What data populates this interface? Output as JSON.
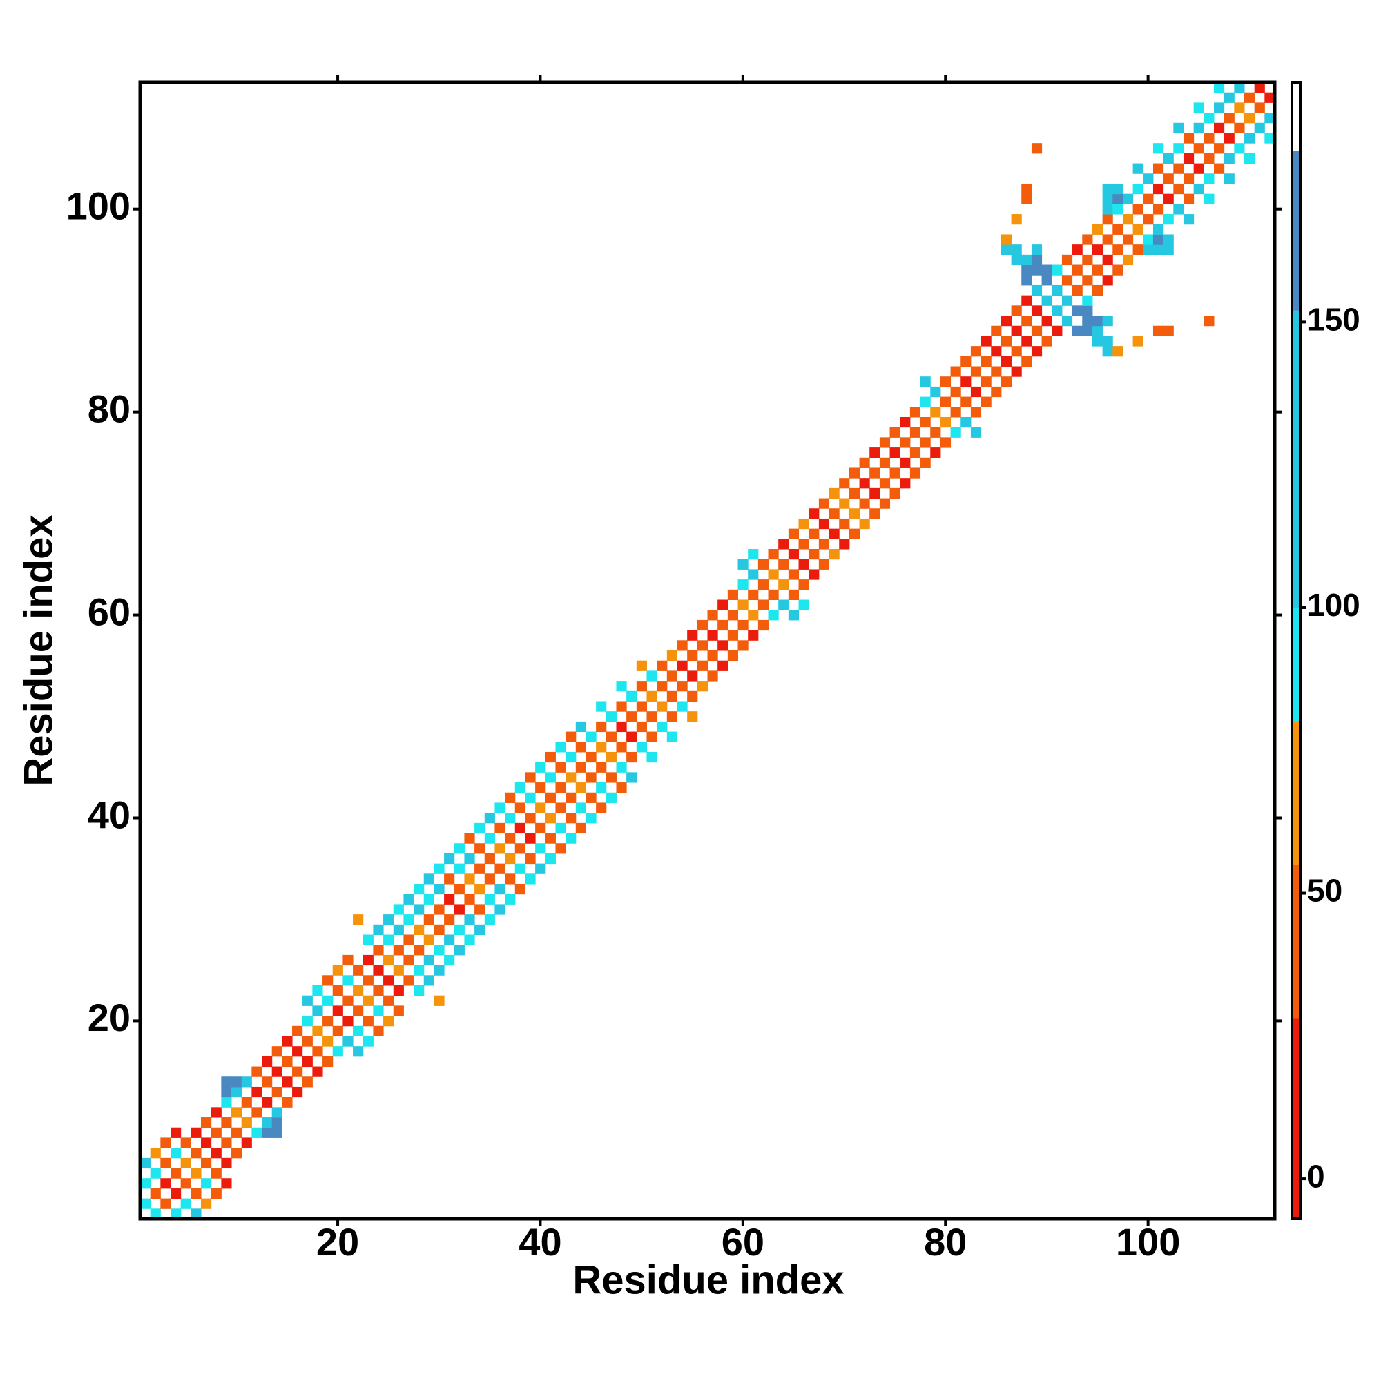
{
  "chart_data": {
    "type": "heatmap",
    "xlabel": "Residue index",
    "ylabel": "Residue index",
    "xlim": [
      0.5,
      112.5
    ],
    "ylim": [
      0.5,
      112.5
    ],
    "xticks": [
      20,
      40,
      60,
      80,
      100
    ],
    "yticks": [
      20,
      40,
      60,
      80,
      100
    ],
    "symmetric": true,
    "clim": [
      -7,
      192
    ],
    "cticks": [
      0,
      50,
      100,
      150
    ],
    "colorbands": [
      {
        "from": -7,
        "to": 28,
        "color": "#ec1c0c"
      },
      {
        "from": 28,
        "to": 55,
        "color": "#f25c0a"
      },
      {
        "from": 55,
        "to": 80,
        "color": "#f5930c"
      },
      {
        "from": 80,
        "to": 100,
        "color": "#1ee6ee"
      },
      {
        "from": 100,
        "to": 152,
        "color": "#25c8e0"
      },
      {
        "from": 152,
        "to": 180,
        "color": "#4a88c2"
      }
    ],
    "cells": [
      [
        1,
        2,
        90
      ],
      [
        1,
        4,
        90
      ],
      [
        1,
        6,
        120
      ],
      [
        2,
        3,
        40
      ],
      [
        2,
        5,
        90
      ],
      [
        2,
        7,
        65
      ],
      [
        3,
        4,
        10
      ],
      [
        3,
        6,
        40
      ],
      [
        3,
        8,
        40
      ],
      [
        4,
        5,
        40
      ],
      [
        4,
        7,
        90
      ],
      [
        4,
        9,
        10
      ],
      [
        5,
        6,
        65
      ],
      [
        5,
        8,
        40
      ],
      [
        6,
        7,
        40
      ],
      [
        6,
        9,
        10
      ],
      [
        7,
        8,
        10
      ],
      [
        7,
        10,
        40
      ],
      [
        8,
        9,
        40
      ],
      [
        8,
        11,
        10
      ],
      [
        9,
        10,
        40
      ],
      [
        9,
        12,
        90
      ],
      [
        9,
        13,
        165
      ],
      [
        9,
        14,
        165
      ],
      [
        10,
        11,
        65
      ],
      [
        10,
        13,
        120
      ],
      [
        10,
        14,
        165
      ],
      [
        11,
        12,
        40
      ],
      [
        11,
        14,
        120
      ],
      [
        12,
        13,
        10
      ],
      [
        12,
        15,
        40
      ],
      [
        13,
        14,
        40
      ],
      [
        13,
        16,
        10
      ],
      [
        14,
        15,
        10
      ],
      [
        14,
        17,
        40
      ],
      [
        15,
        16,
        40
      ],
      [
        15,
        18,
        10
      ],
      [
        16,
        17,
        10
      ],
      [
        16,
        19,
        40
      ],
      [
        17,
        18,
        40
      ],
      [
        17,
        20,
        90
      ],
      [
        17,
        22,
        120
      ],
      [
        18,
        19,
        65
      ],
      [
        18,
        21,
        120
      ],
      [
        18,
        23,
        90
      ],
      [
        19,
        20,
        40
      ],
      [
        19,
        22,
        90
      ],
      [
        19,
        24,
        40
      ],
      [
        20,
        21,
        10
      ],
      [
        20,
        23,
        40
      ],
      [
        20,
        25,
        65
      ],
      [
        21,
        22,
        40
      ],
      [
        21,
        24,
        90
      ],
      [
        21,
        26,
        40
      ],
      [
        22,
        23,
        65
      ],
      [
        22,
        25,
        40
      ],
      [
        22,
        30,
        65
      ],
      [
        23,
        24,
        40
      ],
      [
        23,
        26,
        10
      ],
      [
        23,
        28,
        90
      ],
      [
        24,
        25,
        10
      ],
      [
        24,
        27,
        40
      ],
      [
        24,
        29,
        120
      ],
      [
        25,
        26,
        65
      ],
      [
        25,
        28,
        90
      ],
      [
        25,
        30,
        120
      ],
      [
        26,
        27,
        40
      ],
      [
        26,
        29,
        120
      ],
      [
        26,
        31,
        90
      ],
      [
        27,
        28,
        40
      ],
      [
        27,
        30,
        90
      ],
      [
        27,
        32,
        120
      ],
      [
        28,
        29,
        65
      ],
      [
        28,
        31,
        120
      ],
      [
        28,
        33,
        90
      ],
      [
        29,
        30,
        40
      ],
      [
        29,
        32,
        90
      ],
      [
        29,
        34,
        120
      ],
      [
        30,
        31,
        40
      ],
      [
        30,
        33,
        120
      ],
      [
        30,
        35,
        90
      ],
      [
        31,
        32,
        10
      ],
      [
        31,
        34,
        40
      ],
      [
        31,
        36,
        120
      ],
      [
        32,
        33,
        40
      ],
      [
        32,
        35,
        90
      ],
      [
        32,
        37,
        90
      ],
      [
        33,
        34,
        65
      ],
      [
        33,
        36,
        120
      ],
      [
        33,
        38,
        40
      ],
      [
        34,
        35,
        40
      ],
      [
        34,
        37,
        40
      ],
      [
        34,
        39,
        90
      ],
      [
        35,
        36,
        40
      ],
      [
        35,
        38,
        90
      ],
      [
        35,
        40,
        120
      ],
      [
        36,
        37,
        65
      ],
      [
        36,
        39,
        40
      ],
      [
        36,
        41,
        90
      ],
      [
        37,
        38,
        40
      ],
      [
        37,
        40,
        90
      ],
      [
        37,
        42,
        40
      ],
      [
        38,
        39,
        10
      ],
      [
        38,
        41,
        40
      ],
      [
        38,
        43,
        90
      ],
      [
        39,
        40,
        40
      ],
      [
        39,
        42,
        90
      ],
      [
        39,
        44,
        40
      ],
      [
        40,
        41,
        65
      ],
      [
        40,
        43,
        40
      ],
      [
        40,
        45,
        90
      ],
      [
        41,
        42,
        40
      ],
      [
        41,
        44,
        90
      ],
      [
        41,
        46,
        40
      ],
      [
        42,
        43,
        40
      ],
      [
        42,
        45,
        40
      ],
      [
        42,
        47,
        90
      ],
      [
        43,
        44,
        65
      ],
      [
        43,
        46,
        90
      ],
      [
        43,
        48,
        40
      ],
      [
        44,
        45,
        40
      ],
      [
        44,
        47,
        40
      ],
      [
        44,
        49,
        120
      ],
      [
        45,
        46,
        40
      ],
      [
        45,
        48,
        90
      ],
      [
        46,
        47,
        65
      ],
      [
        46,
        49,
        40
      ],
      [
        46,
        51,
        90
      ],
      [
        47,
        48,
        40
      ],
      [
        47,
        50,
        90
      ],
      [
        48,
        49,
        10
      ],
      [
        48,
        51,
        40
      ],
      [
        48,
        53,
        90
      ],
      [
        49,
        50,
        40
      ],
      [
        49,
        52,
        90
      ],
      [
        50,
        51,
        40
      ],
      [
        50,
        53,
        40
      ],
      [
        50,
        55,
        65
      ],
      [
        51,
        52,
        65
      ],
      [
        51,
        54,
        90
      ],
      [
        52,
        53,
        40
      ],
      [
        52,
        55,
        40
      ],
      [
        53,
        54,
        40
      ],
      [
        53,
        56,
        65
      ],
      [
        54,
        55,
        10
      ],
      [
        54,
        57,
        40
      ],
      [
        55,
        56,
        40
      ],
      [
        55,
        58,
        10
      ],
      [
        56,
        57,
        40
      ],
      [
        56,
        59,
        40
      ],
      [
        57,
        58,
        10
      ],
      [
        57,
        60,
        40
      ],
      [
        58,
        59,
        40
      ],
      [
        58,
        61,
        10
      ],
      [
        59,
        60,
        40
      ],
      [
        59,
        62,
        40
      ],
      [
        60,
        61,
        65
      ],
      [
        60,
        63,
        90
      ],
      [
        60,
        65,
        120
      ],
      [
        61,
        62,
        40
      ],
      [
        61,
        64,
        120
      ],
      [
        61,
        66,
        90
      ],
      [
        62,
        63,
        40
      ],
      [
        62,
        65,
        40
      ],
      [
        63,
        64,
        65
      ],
      [
        63,
        66,
        40
      ],
      [
        64,
        65,
        40
      ],
      [
        64,
        67,
        10
      ],
      [
        65,
        66,
        10
      ],
      [
        65,
        68,
        40
      ],
      [
        66,
        67,
        40
      ],
      [
        66,
        69,
        65
      ],
      [
        67,
        68,
        40
      ],
      [
        67,
        70,
        10
      ],
      [
        68,
        69,
        10
      ],
      [
        68,
        71,
        40
      ],
      [
        69,
        70,
        40
      ],
      [
        69,
        72,
        65
      ],
      [
        70,
        71,
        65
      ],
      [
        70,
        73,
        40
      ],
      [
        71,
        72,
        40
      ],
      [
        71,
        74,
        40
      ],
      [
        72,
        73,
        10
      ],
      [
        72,
        75,
        40
      ],
      [
        73,
        74,
        40
      ],
      [
        73,
        76,
        10
      ],
      [
        74,
        75,
        40
      ],
      [
        74,
        77,
        40
      ],
      [
        75,
        76,
        10
      ],
      [
        75,
        78,
        40
      ],
      [
        76,
        77,
        40
      ],
      [
        76,
        79,
        10
      ],
      [
        77,
        78,
        40
      ],
      [
        77,
        80,
        40
      ],
      [
        78,
        79,
        40
      ],
      [
        78,
        81,
        90
      ],
      [
        78,
        83,
        120
      ],
      [
        79,
        80,
        65
      ],
      [
        79,
        82,
        120
      ],
      [
        80,
        81,
        40
      ],
      [
        80,
        83,
        40
      ],
      [
        81,
        82,
        40
      ],
      [
        81,
        84,
        40
      ],
      [
        82,
        83,
        10
      ],
      [
        82,
        85,
        40
      ],
      [
        83,
        84,
        40
      ],
      [
        83,
        86,
        40
      ],
      [
        84,
        85,
        40
      ],
      [
        84,
        87,
        10
      ],
      [
        85,
        86,
        10
      ],
      [
        85,
        88,
        40
      ],
      [
        86,
        87,
        40
      ],
      [
        86,
        89,
        10
      ],
      [
        86,
        96,
        120
      ],
      [
        86,
        97,
        65
      ],
      [
        87,
        88,
        10
      ],
      [
        87,
        90,
        40
      ],
      [
        87,
        95,
        120
      ],
      [
        87,
        96,
        120
      ],
      [
        87,
        99,
        65
      ],
      [
        88,
        89,
        40
      ],
      [
        88,
        91,
        10
      ],
      [
        88,
        93,
        165
      ],
      [
        88,
        94,
        165
      ],
      [
        88,
        95,
        120
      ],
      [
        88,
        101,
        40
      ],
      [
        88,
        102,
        40
      ],
      [
        89,
        90,
        10
      ],
      [
        89,
        92,
        120
      ],
      [
        89,
        94,
        165
      ],
      [
        89,
        95,
        165
      ],
      [
        89,
        96,
        120
      ],
      [
        89,
        106,
        40
      ],
      [
        90,
        91,
        120
      ],
      [
        90,
        93,
        165
      ],
      [
        90,
        94,
        165
      ],
      [
        91,
        92,
        120
      ],
      [
        91,
        94,
        90
      ],
      [
        92,
        93,
        40
      ],
      [
        92,
        95,
        40
      ],
      [
        93,
        94,
        40
      ],
      [
        93,
        96,
        10
      ],
      [
        94,
        95,
        40
      ],
      [
        94,
        97,
        40
      ],
      [
        95,
        96,
        10
      ],
      [
        95,
        98,
        65
      ],
      [
        96,
        97,
        40
      ],
      [
        96,
        99,
        40
      ],
      [
        96,
        100,
        120
      ],
      [
        96,
        101,
        120
      ],
      [
        96,
        102,
        120
      ],
      [
        97,
        98,
        40
      ],
      [
        97,
        100,
        90
      ],
      [
        97,
        101,
        165
      ],
      [
        97,
        102,
        120
      ],
      [
        98,
        99,
        65
      ],
      [
        98,
        101,
        120
      ],
      [
        99,
        100,
        40
      ],
      [
        99,
        102,
        90
      ],
      [
        99,
        104,
        120
      ],
      [
        100,
        101,
        40
      ],
      [
        100,
        103,
        120
      ],
      [
        101,
        102,
        10
      ],
      [
        101,
        104,
        40
      ],
      [
        101,
        106,
        90
      ],
      [
        102,
        103,
        40
      ],
      [
        102,
        105,
        120
      ],
      [
        103,
        104,
        40
      ],
      [
        103,
        106,
        90
      ],
      [
        103,
        108,
        120
      ],
      [
        104,
        105,
        10
      ],
      [
        104,
        107,
        40
      ],
      [
        105,
        106,
        40
      ],
      [
        105,
        108,
        120
      ],
      [
        105,
        110,
        90
      ],
      [
        106,
        107,
        40
      ],
      [
        106,
        109,
        90
      ],
      [
        107,
        108,
        10
      ],
      [
        107,
        110,
        120
      ],
      [
        107,
        112,
        90
      ],
      [
        108,
        109,
        40
      ],
      [
        108,
        111,
        120
      ],
      [
        109,
        110,
        65
      ],
      [
        109,
        112,
        120
      ],
      [
        110,
        111,
        40
      ],
      [
        111,
        112,
        10
      ]
    ]
  }
}
